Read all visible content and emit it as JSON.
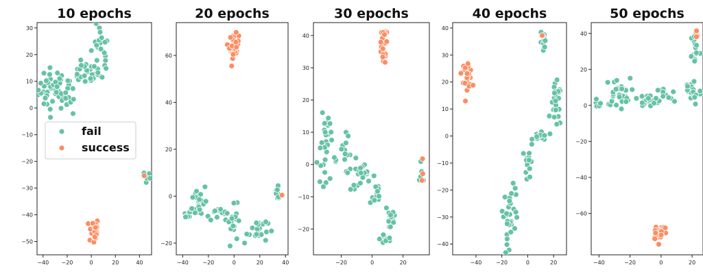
{
  "colors": {
    "fail": "#66c2a5",
    "success": "#fc8d62"
  },
  "legend": {
    "placement": "center-left of first panel",
    "entries": [
      "fail",
      "success"
    ]
  },
  "chart_data": [
    {
      "type": "scatter",
      "title": "10 epochs",
      "xlim": [
        -45,
        50
      ],
      "ylim": [
        -55,
        32
      ],
      "xticks": [
        -40,
        -20,
        0,
        20,
        40
      ],
      "yticks": [
        -50,
        -40,
        -30,
        -20,
        -10,
        0,
        10,
        20,
        30
      ],
      "series": [
        {
          "name": "fail",
          "clusters": [
            {
              "cx": -32,
              "cy": 7,
              "sx": 6,
              "sy": 4,
              "n": 40
            },
            {
              "cx": -18,
              "cy": 6,
              "sx": 4,
              "sy": 4,
              "n": 18
            },
            {
              "cx": -5,
              "cy": 13,
              "sx": 6,
              "sy": 2,
              "n": 22
            },
            {
              "cx": 7,
              "cy": 20,
              "sx": 4,
              "sy": 6,
              "n": 28
            },
            {
              "cx": 46,
              "cy": -26,
              "sx": 1.5,
              "sy": 1.5,
              "n": 6
            }
          ]
        },
        {
          "name": "success",
          "clusters": [
            {
              "cx": 2,
              "cy": -46,
              "sx": 2,
              "sy": 2.5,
              "n": 25
            },
            {
              "cx": 44,
              "cy": -26,
              "sx": 0.6,
              "sy": 0.6,
              "n": 1
            }
          ]
        }
      ]
    },
    {
      "type": "scatter",
      "title": "20 epochs",
      "xlim": [
        -45,
        42
      ],
      "ylim": [
        -25,
        74
      ],
      "xticks": [
        -40,
        -20,
        0,
        20,
        40
      ],
      "yticks": [
        -20,
        0,
        20,
        40,
        60
      ],
      "series": [
        {
          "name": "fail",
          "clusters": [
            {
              "cx": -35,
              "cy": -7,
              "sx": 3,
              "sy": 1.5,
              "n": 10
            },
            {
              "cx": -27,
              "cy": -2,
              "sx": 3,
              "sy": 4,
              "n": 22
            },
            {
              "cx": -12,
              "cy": -7,
              "sx": 6,
              "sy": 1.5,
              "n": 16
            },
            {
              "cx": 0,
              "cy": -12,
              "sx": 3,
              "sy": 4,
              "n": 18
            },
            {
              "cx": 18,
              "cy": -14,
              "sx": 4,
              "sy": 3,
              "n": 22
            },
            {
              "cx": 34,
              "cy": 1,
              "sx": 1.5,
              "sy": 2,
              "n": 8
            }
          ]
        },
        {
          "name": "success",
          "clusters": [
            {
              "cx": 0,
              "cy": 64,
              "sx": 1.8,
              "sy": 2.5,
              "n": 30
            },
            {
              "cx": 37,
              "cy": 0,
              "sx": 0.6,
              "sy": 0.6,
              "n": 1
            }
          ]
        }
      ]
    },
    {
      "type": "scatter",
      "title": "30 epochs",
      "xlim": [
        -38,
        37
      ],
      "ylim": [
        -28,
        44
      ],
      "xticks": [
        -20,
        0,
        20
      ],
      "yticks": [
        -20,
        -10,
        0,
        10,
        20,
        30,
        40
      ],
      "series": [
        {
          "name": "fail",
          "clusters": [
            {
              "cx": -29,
              "cy": 11,
              "sx": 1.8,
              "sy": 4,
              "n": 14
            },
            {
              "cx": -30,
              "cy": 1,
              "sx": 4,
              "sy": 3,
              "n": 16
            },
            {
              "cx": -18,
              "cy": 3,
              "sx": 4,
              "sy": 3,
              "n": 16
            },
            {
              "cx": -6,
              "cy": -4,
              "sx": 4,
              "sy": 2,
              "n": 20
            },
            {
              "cx": 2,
              "cy": -10,
              "sx": 2,
              "sy": 3,
              "n": 10
            },
            {
              "cx": 12,
              "cy": -16,
              "sx": 2,
              "sy": 3,
              "n": 14
            },
            {
              "cx": 9,
              "cy": -23,
              "sx": 2,
              "sy": 1.2,
              "n": 10
            },
            {
              "cx": 32,
              "cy": -4,
              "sx": 1.2,
              "sy": 1.5,
              "n": 6
            }
          ]
        },
        {
          "name": "success",
          "clusters": [
            {
              "cx": 7,
              "cy": 35,
              "sx": 1.5,
              "sy": 2,
              "n": 18
            },
            {
              "cx": 7,
              "cy": 40.5,
              "sx": 1.5,
              "sy": 0.6,
              "n": 8
            },
            {
              "cx": 33,
              "cy": -2,
              "sx": 0.8,
              "sy": 2,
              "n": 3
            }
          ]
        }
      ]
    },
    {
      "type": "scatter",
      "title": "40 epochs",
      "xlim": [
        -58,
        30
      ],
      "ylim": [
        -44,
        42
      ],
      "xticks": [
        -40,
        -20,
        0,
        20
      ],
      "yticks": [
        -40,
        -30,
        -20,
        -10,
        0,
        10,
        20,
        30,
        40
      ],
      "series": [
        {
          "name": "fail",
          "clusters": [
            {
              "cx": 12,
              "cy": 34,
              "sx": 1.2,
              "sy": 3,
              "n": 10
            },
            {
              "cx": 22,
              "cy": 11,
              "sx": 2,
              "sy": 4,
              "n": 28
            },
            {
              "cx": 10,
              "cy": 0,
              "sx": 3,
              "sy": 1.2,
              "n": 14
            },
            {
              "cx": 1,
              "cy": -10,
              "sx": 1.5,
              "sy": 3.5,
              "n": 14
            },
            {
              "cx": -13,
              "cy": -27,
              "sx": 3,
              "sy": 4,
              "n": 26
            },
            {
              "cx": -15,
              "cy": -37,
              "sx": 1.5,
              "sy": 3,
              "n": 10
            }
          ]
        },
        {
          "name": "success",
          "clusters": [
            {
              "cx": -47,
              "cy": 23,
              "sx": 2,
              "sy": 2.5,
              "n": 28
            },
            {
              "cx": 11,
              "cy": 37.5,
              "sx": 0.6,
              "sy": 0.6,
              "n": 2
            }
          ]
        }
      ]
    },
    {
      "type": "scatter",
      "title": "50 epochs",
      "xlim": [
        -45,
        27
      ],
      "ylim": [
        -83,
        46
      ],
      "xticks": [
        -40,
        -20,
        0,
        20
      ],
      "yticks": [
        -60,
        -40,
        -20,
        0,
        20,
        40
      ],
      "series": [
        {
          "name": "fail",
          "clusters": [
            {
              "cx": -40,
              "cy": -1,
              "sx": 2,
              "sy": 2,
              "n": 8
            },
            {
              "cx": -28,
              "cy": 7,
              "sx": 4,
              "sy": 4,
              "n": 30
            },
            {
              "cx": -10,
              "cy": 2,
              "sx": 6,
              "sy": 2,
              "n": 20
            },
            {
              "cx": 3,
              "cy": 5,
              "sx": 3,
              "sy": 3,
              "n": 12
            },
            {
              "cx": 20,
              "cy": 8,
              "sx": 3,
              "sy": 4,
              "n": 26
            },
            {
              "cx": 22,
              "cy": 32,
              "sx": 1.5,
              "sy": 5,
              "n": 14
            }
          ]
        },
        {
          "name": "success",
          "clusters": [
            {
              "cx": -1,
              "cy": -70,
              "sx": 2.5,
              "sy": 2.5,
              "n": 26
            },
            {
              "cx": 23,
              "cy": 38,
              "sx": 1,
              "sy": 2,
              "n": 4
            }
          ]
        }
      ]
    }
  ]
}
